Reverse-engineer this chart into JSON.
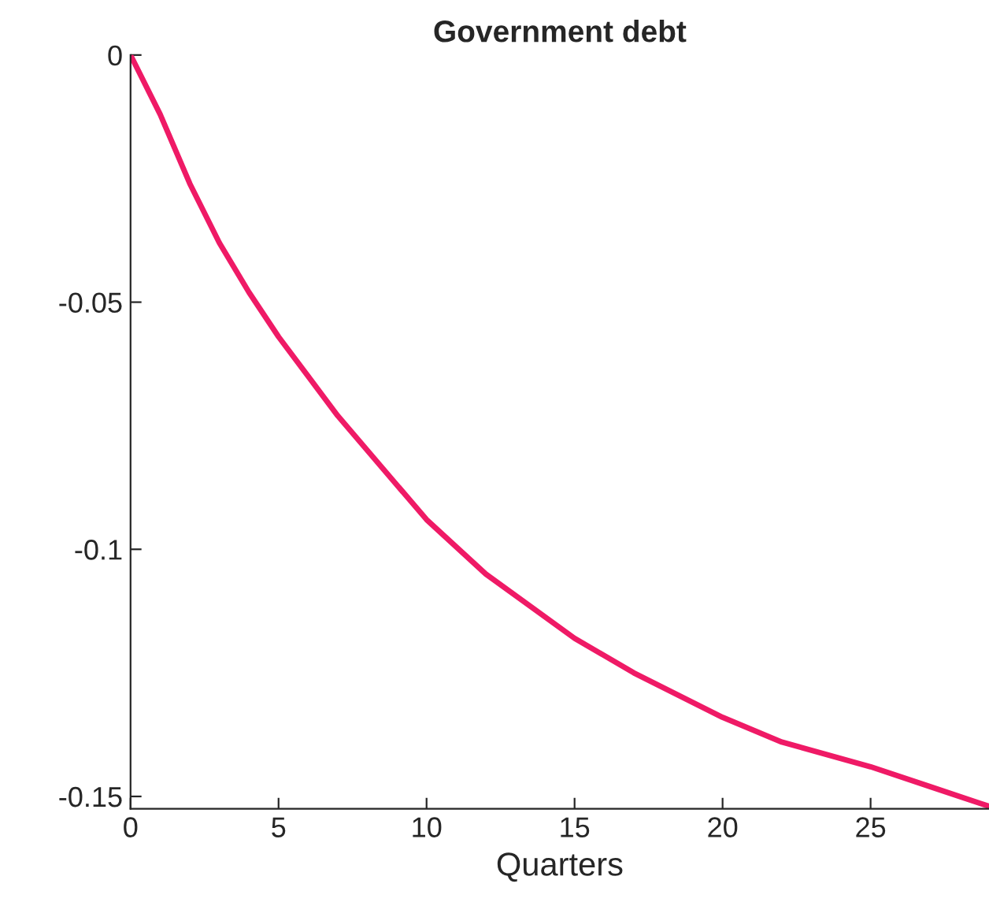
{
  "chart_data": {
    "type": "line",
    "title": "Government debt",
    "xlabel": "Quarters",
    "x": [
      0,
      1,
      2,
      3,
      4,
      5,
      6,
      7,
      8,
      9,
      10,
      12,
      15,
      17,
      20,
      22,
      25,
      27,
      29
    ],
    "series": [
      {
        "color": "#ef1a66",
        "values": [
          0,
          -0.012,
          -0.026,
          -0.038,
          -0.048,
          -0.057,
          -0.065,
          -0.073,
          -0.08,
          -0.087,
          -0.094,
          -0.105,
          -0.118,
          -0.125,
          -0.134,
          -0.139,
          -0.144,
          -0.148,
          -0.152
        ]
      }
    ],
    "xlim": [
      0,
      29
    ],
    "ylim": [
      -0.1525,
      0
    ],
    "xticks": [
      0,
      5,
      10,
      15,
      20,
      25
    ],
    "yticks": [
      {
        "value": -0.15,
        "label": "-0.15"
      },
      {
        "value": -0.1,
        "label": "-0.1"
      },
      {
        "value": -0.05,
        "label": "-0.05"
      },
      0
    ],
    "grid": false,
    "legend": false
  }
}
